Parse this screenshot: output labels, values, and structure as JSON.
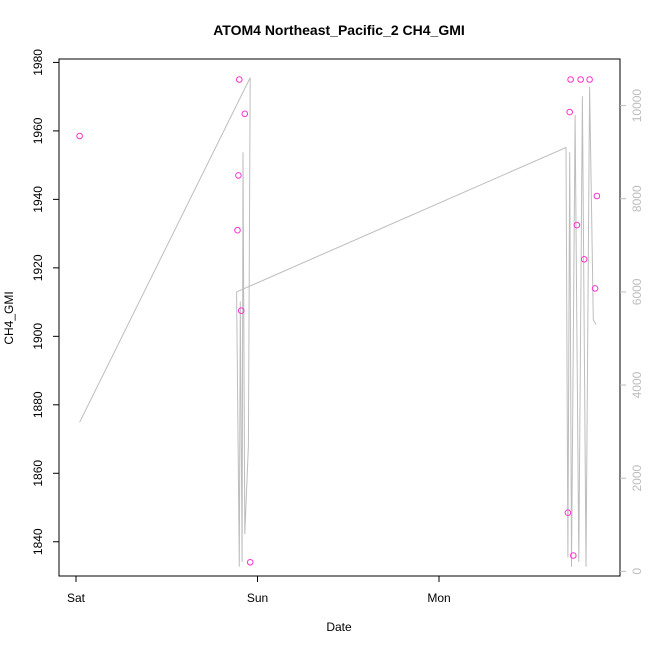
{
  "chart_data": {
    "type": "scatter",
    "title": "ATOM4 Northeast_Pacific_2 CH4_GMI",
    "xlabel": "Date",
    "ylabel": "CH4_GMI",
    "x_ticks": [
      "Sat",
      "Sun",
      "Mon"
    ],
    "y_ticks": [
      "1840",
      "1860",
      "1880",
      "1900",
      "1920",
      "1940",
      "1960",
      "1980"
    ],
    "ylim": [
      1830,
      1981
    ],
    "y2_ticks": [
      "0",
      "2000",
      "4000",
      "6000",
      "8000",
      "10000"
    ],
    "y2lim": [
      -100,
      11000
    ],
    "grid": false,
    "colors": {
      "points": "#ff33cc",
      "line": "#bdbdbd",
      "axis": "#000000",
      "axis_right": "#bdbdbd"
    },
    "series": [
      {
        "type": "scatter",
        "x": [
          0.02,
          0.89,
          0.895,
          0.9,
          0.91,
          0.93,
          0.96,
          2.71,
          2.72,
          2.725,
          2.74,
          2.76,
          2.78,
          2.8,
          2.83,
          2.86,
          2.87
        ],
        "y": [
          1958.5,
          1931,
          1947,
          1975,
          1907.5,
          1965,
          1834,
          1848.5,
          1965.5,
          1975,
          1836,
          1932.5,
          1975,
          1922.5,
          1975,
          1914,
          1941
        ]
      },
      {
        "type": "line",
        "axis": "right",
        "x": [
          0.02,
          0.96,
          0.95,
          0.93,
          0.92,
          0.915,
          0.905,
          0.9,
          0.885,
          2.7,
          2.71,
          2.72,
          2.73,
          2.75,
          2.77,
          2.79,
          2.81,
          2.83,
          2.85,
          2.865
        ],
        "y": [
          3200,
          10600,
          2700,
          800,
          9000,
          200,
          5800,
          100,
          6000,
          9100,
          300,
          9000,
          100,
          9800,
          200,
          10200,
          100,
          10400,
          5400,
          5300
        ]
      }
    ]
  }
}
